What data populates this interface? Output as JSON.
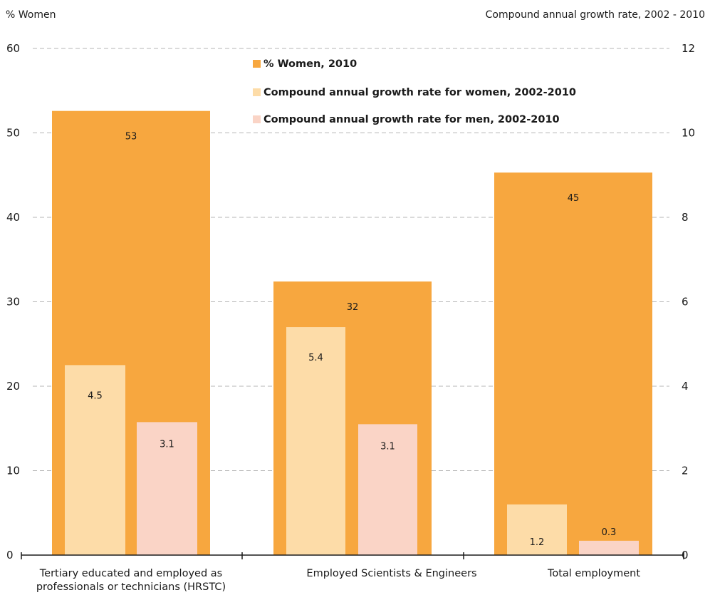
{
  "chart_data": {
    "type": "bar",
    "y_left_label": "% Women",
    "y_right_label": "Compound  annual growth rate, 2002 - 2010",
    "y_left_lim": [
      0,
      60
    ],
    "y_left_ticks": [
      0,
      10,
      20,
      30,
      40,
      50,
      60
    ],
    "y_right_lim": [
      0,
      12
    ],
    "y_right_ticks": [
      0,
      2,
      4,
      6,
      8,
      10,
      12
    ],
    "grid": true,
    "legend_position": "top-center",
    "categories": [
      [
        "Tertiary educated and employed as",
        "professionals or technicians (HRSTC)"
      ],
      [
        "Employed Scientists & Engineers"
      ],
      [
        "Total employment"
      ]
    ],
    "series": [
      {
        "name": "% Women, 2010",
        "axis": "left",
        "color": "#f7a73f",
        "values": [
          52.6,
          32.4,
          45.3
        ],
        "labels": [
          "53",
          "32",
          "45"
        ]
      },
      {
        "name": "Compound annual growth rate for women, 2002-2010",
        "axis": "right",
        "color": "#fddca8",
        "values": [
          4.5,
          5.4,
          1.2
        ],
        "labels": [
          "4.5",
          "5.4",
          "1.2"
        ]
      },
      {
        "name": "Compound annual growth rate for men, 2002-2010",
        "axis": "right",
        "color": "#fad4c6",
        "values": [
          3.15,
          3.1,
          0.34
        ],
        "labels": [
          "3.1",
          "3.1",
          "0.3"
        ]
      }
    ]
  }
}
